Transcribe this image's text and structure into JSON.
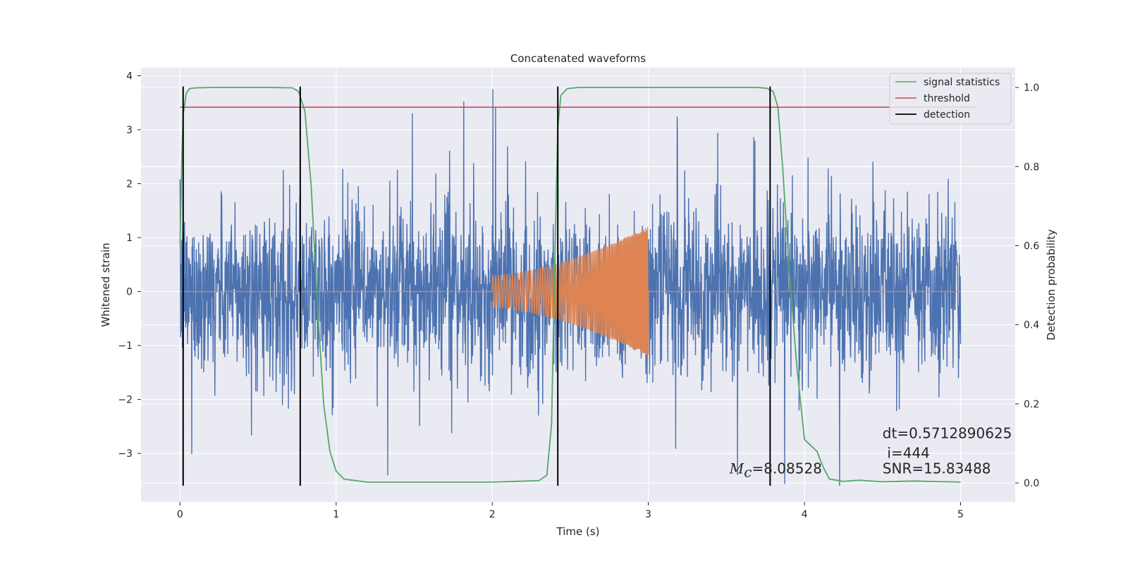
{
  "chart_data": {
    "type": "line",
    "title": "Concatenated waveforms",
    "xlabel": "Time (s)",
    "ylabel": "Whitened strain",
    "y2label": "Detection probability",
    "xlim": [
      -0.25,
      5.35
    ],
    "ylim": [
      -3.9,
      4.15
    ],
    "y2lim": [
      -0.048,
      1.05
    ],
    "grid": true,
    "xticks": [
      "0",
      "1",
      "2",
      "3",
      "4",
      "5"
    ],
    "xtick_values": [
      0,
      1,
      2,
      3,
      4,
      5
    ],
    "yticks": [
      "−3",
      "−2",
      "−1",
      "0",
      "1",
      "2",
      "3",
      "4"
    ],
    "ytick_values": [
      -3,
      -2,
      -1,
      0,
      1,
      2,
      3,
      4
    ],
    "y2ticks": [
      "0.0",
      "0.2",
      "0.4",
      "0.6",
      "0.8",
      "1.0"
    ],
    "y2tick_values": [
      0.0,
      0.2,
      0.4,
      0.6,
      0.8,
      1.0
    ],
    "legend_position": "top-right",
    "colors": {
      "noise": "#4c72b0",
      "signal": "#dd8452",
      "statistics": "#55a868",
      "threshold": "#c44e52",
      "detection": "#000000",
      "background": "#eaeaf2",
      "grid": "#ffffff"
    },
    "series": [
      {
        "key": "whitened_noise",
        "axis": "left",
        "x_range": [
          0,
          5
        ],
        "typical_range": [
          -1.5,
          1.8
        ],
        "extremes": [
          -3.6,
          3.8
        ]
      },
      {
        "key": "injected_signal",
        "axis": "left",
        "start": 2.0,
        "end": 3.0,
        "amplitude_start": 0.3,
        "amplitude_end": 1.2
      },
      {
        "name": "signal statistics",
        "axis": "right",
        "x": [
          0,
          0.01,
          0.02,
          0.04,
          0.06,
          0.1,
          0.2,
          0.4,
          0.6,
          0.72,
          0.76,
          0.8,
          0.84,
          0.88,
          0.92,
          0.96,
          1.0,
          1.05,
          1.2,
          1.6,
          2.0,
          2.15,
          2.3,
          2.35,
          2.38,
          2.4,
          2.42,
          2.44,
          2.48,
          2.55,
          2.7,
          3.0,
          3.4,
          3.7,
          3.76,
          3.8,
          3.83,
          3.86,
          3.9,
          3.95,
          4.0,
          4.04,
          4.08,
          4.12,
          4.16,
          4.25,
          4.35,
          4.5,
          4.7,
          5.0
        ],
        "y": [
          0.6,
          0.8,
          0.93,
          0.985,
          0.997,
          0.999,
          1.0,
          1.0,
          1.0,
          0.999,
          0.99,
          0.94,
          0.75,
          0.45,
          0.2,
          0.08,
          0.03,
          0.01,
          0.002,
          0.002,
          0.002,
          0.004,
          0.006,
          0.02,
          0.15,
          0.55,
          0.9,
          0.98,
          0.997,
          1.0,
          1.0,
          1.0,
          1.0,
          1.0,
          0.998,
          0.99,
          0.95,
          0.8,
          0.55,
          0.3,
          0.11,
          0.095,
          0.08,
          0.04,
          0.01,
          0.004,
          0.007,
          0.003,
          0.005,
          0.002
        ]
      },
      {
        "name": "threshold",
        "axis": "right",
        "x": [
          0,
          5.1
        ],
        "y": [
          0.95,
          0.95
        ]
      },
      {
        "name": "detection",
        "axis": "right",
        "vlines": [
          0.02,
          0.77,
          2.42,
          3.78
        ],
        "ymin": -3.6,
        "ymax": 3.8
      }
    ],
    "annotations": [
      {
        "text_italic": "M",
        "sub": "c",
        "text": "=8.08528",
        "x": 3.52,
        "y": -3.37
      },
      {
        "text": "dt=0.5712890625",
        "x": 4.5,
        "y": -2.72
      },
      {
        "text": "i=444",
        "x": 4.53,
        "y": -3.08
      },
      {
        "text": "SNR=15.83488",
        "x": 4.5,
        "y": -3.37
      }
    ]
  }
}
